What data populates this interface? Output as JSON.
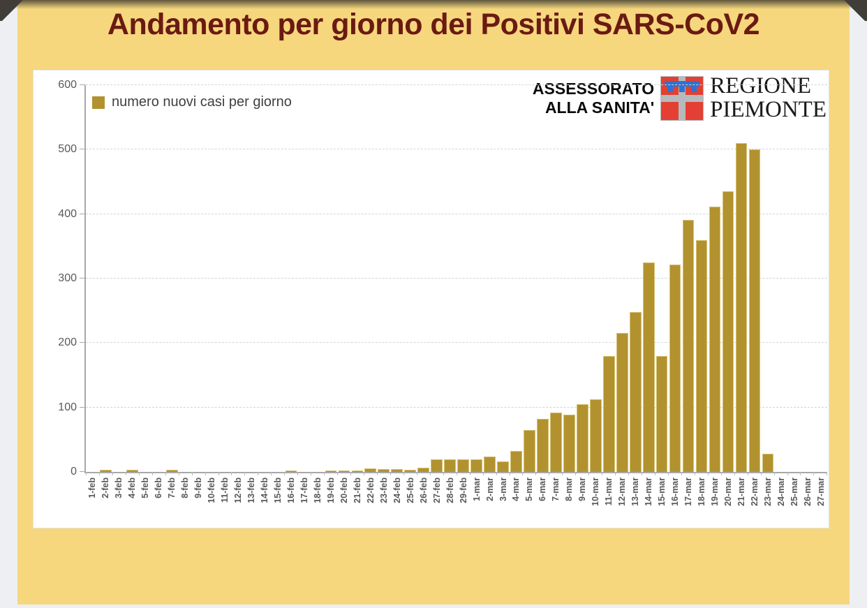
{
  "page": {
    "title": "Andamento per giorno dei Positivi SARS-CoV2"
  },
  "branding": {
    "assessorato_line1": "ASSESSORATO",
    "assessorato_line2": "ALLA SANITA'",
    "regione_line1": "REGIONE",
    "regione_line2": "PIEMONTE"
  },
  "chart_data": {
    "type": "bar",
    "title": "Andamento per giorno dei Positivi SARS-CoV2",
    "legend_label": "numero nuovi casi per giorno",
    "legend_position": "top-left",
    "xlabel": "",
    "ylabel": "",
    "ylim": [
      0,
      600
    ],
    "ytick_interval": 100,
    "grid": "horizontal-dashed",
    "categories": [
      "1-feb",
      "2-feb",
      "3-feb",
      "4-feb",
      "5-feb",
      "6-feb",
      "7-feb",
      "8-feb",
      "9-feb",
      "10-feb",
      "11-feb",
      "12-feb",
      "13-feb",
      "14-feb",
      "15-feb",
      "16-feb",
      "17-feb",
      "18-feb",
      "19-feb",
      "20-feb",
      "21-feb",
      "22-feb",
      "23-feb",
      "24-feb",
      "25-feb",
      "26-feb",
      "27-feb",
      "28-feb",
      "29-feb",
      "1-mar",
      "2-mar",
      "3-mar",
      "4-mar",
      "5-mar",
      "6-mar",
      "7-mar",
      "8-mar",
      "9-mar",
      "10-mar",
      "11-mar",
      "12-mar",
      "13-mar",
      "14-mar",
      "15-mar",
      "16-mar",
      "17-mar",
      "18-mar",
      "19-mar",
      "20-mar",
      "21-mar",
      "22-mar",
      "23-mar",
      "24-mar",
      "25-mar",
      "26-mar",
      "27-mar"
    ],
    "values": [
      0,
      3,
      0,
      3,
      0,
      0,
      3,
      0,
      0,
      0,
      0,
      0,
      0,
      0,
      0,
      2,
      0,
      0,
      2,
      2,
      2,
      5,
      4,
      4,
      3,
      7,
      19,
      19,
      19,
      20,
      24,
      16,
      33,
      65,
      82,
      92,
      89,
      105,
      113,
      180,
      215,
      248,
      325,
      180,
      322,
      391,
      360,
      412,
      435,
      510,
      500,
      28,
      0,
      0,
      0,
      0
    ],
    "colors": {
      "slide_background": "#f6d77d",
      "title_text": "#6b1a12",
      "bar_fill": "#b2922f",
      "bar_edge": "#d6c273",
      "axis": "#a8a8a8",
      "tick_text": "#595959",
      "crest_red": "#e34033",
      "crest_silver": "#b7babd",
      "crest_blue": "#2e72d4"
    }
  }
}
